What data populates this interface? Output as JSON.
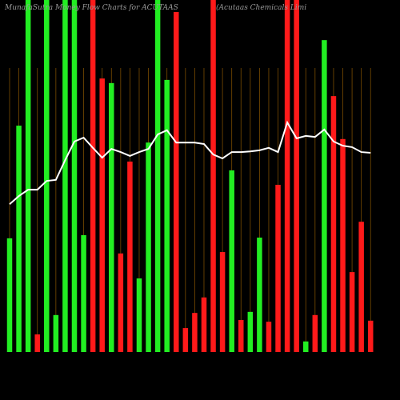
{
  "chart_data": {
    "type": "bar",
    "title": "MunafaSutra  Money Flow  Charts for ACUTAAS",
    "subtitle": "(Acutaas Chemicals Limi",
    "ylim": [
      0,
      100
    ],
    "grid": true,
    "line_color": "#ffffff",
    "values": [
      32.3,
      64.3,
      100,
      5,
      100,
      10.5,
      100,
      100,
      33.2,
      100,
      77.7,
      76.4,
      28,
      54.1,
      20.9,
      59.5,
      100,
      77.3,
      96.6,
      6.8,
      11.1,
      15.5,
      100,
      28.4,
      51.6,
      9.1,
      11.4,
      32.5,
      8.6,
      47.5,
      100,
      100,
      3,
      10.5,
      88.6,
      72.7,
      60.5,
      22.7,
      37,
      8.9
    ],
    "colors": [
      "#22ee22",
      "#22ee22",
      "#22ee22",
      "#ff1a1a",
      "#22ee22",
      "#22ee22",
      "#22ee22",
      "#22ee22",
      "#22ee22",
      "#ff1a1a",
      "#ff1a1a",
      "#22ee22",
      "#ff1a1a",
      "#ff1a1a",
      "#22ee22",
      "#22ee22",
      "#22ee22",
      "#22ee22",
      "#ff1a1a",
      "#ff1a1a",
      "#ff1a1a",
      "#ff1a1a",
      "#ff1a1a",
      "#ff1a1a",
      "#22ee22",
      "#ff1a1a",
      "#22ee22",
      "#22ee22",
      "#ff1a1a",
      "#ff1a1a",
      "#ff1a1a",
      "#ff1a1a",
      "#22ee22",
      "#ff1a1a",
      "#22ee22",
      "#ff1a1a",
      "#ff1a1a",
      "#ff1a1a",
      "#ff1a1a",
      "#ff1a1a"
    ],
    "line_values": [
      42,
      44.3,
      46.1,
      46.1,
      48.6,
      48.9,
      54.5,
      59.8,
      60.9,
      58,
      55.2,
      57.7,
      56.8,
      55.7,
      56.8,
      57.7,
      61.8,
      63,
      59.5,
      59.5,
      59.5,
      59.1,
      56.1,
      55,
      56.8,
      56.8,
      57,
      57.3,
      58,
      56.8,
      65.2,
      60.7,
      61.4,
      61.1,
      63.2,
      59.8,
      58.6,
      58.2,
      56.8,
      56.6
    ]
  }
}
